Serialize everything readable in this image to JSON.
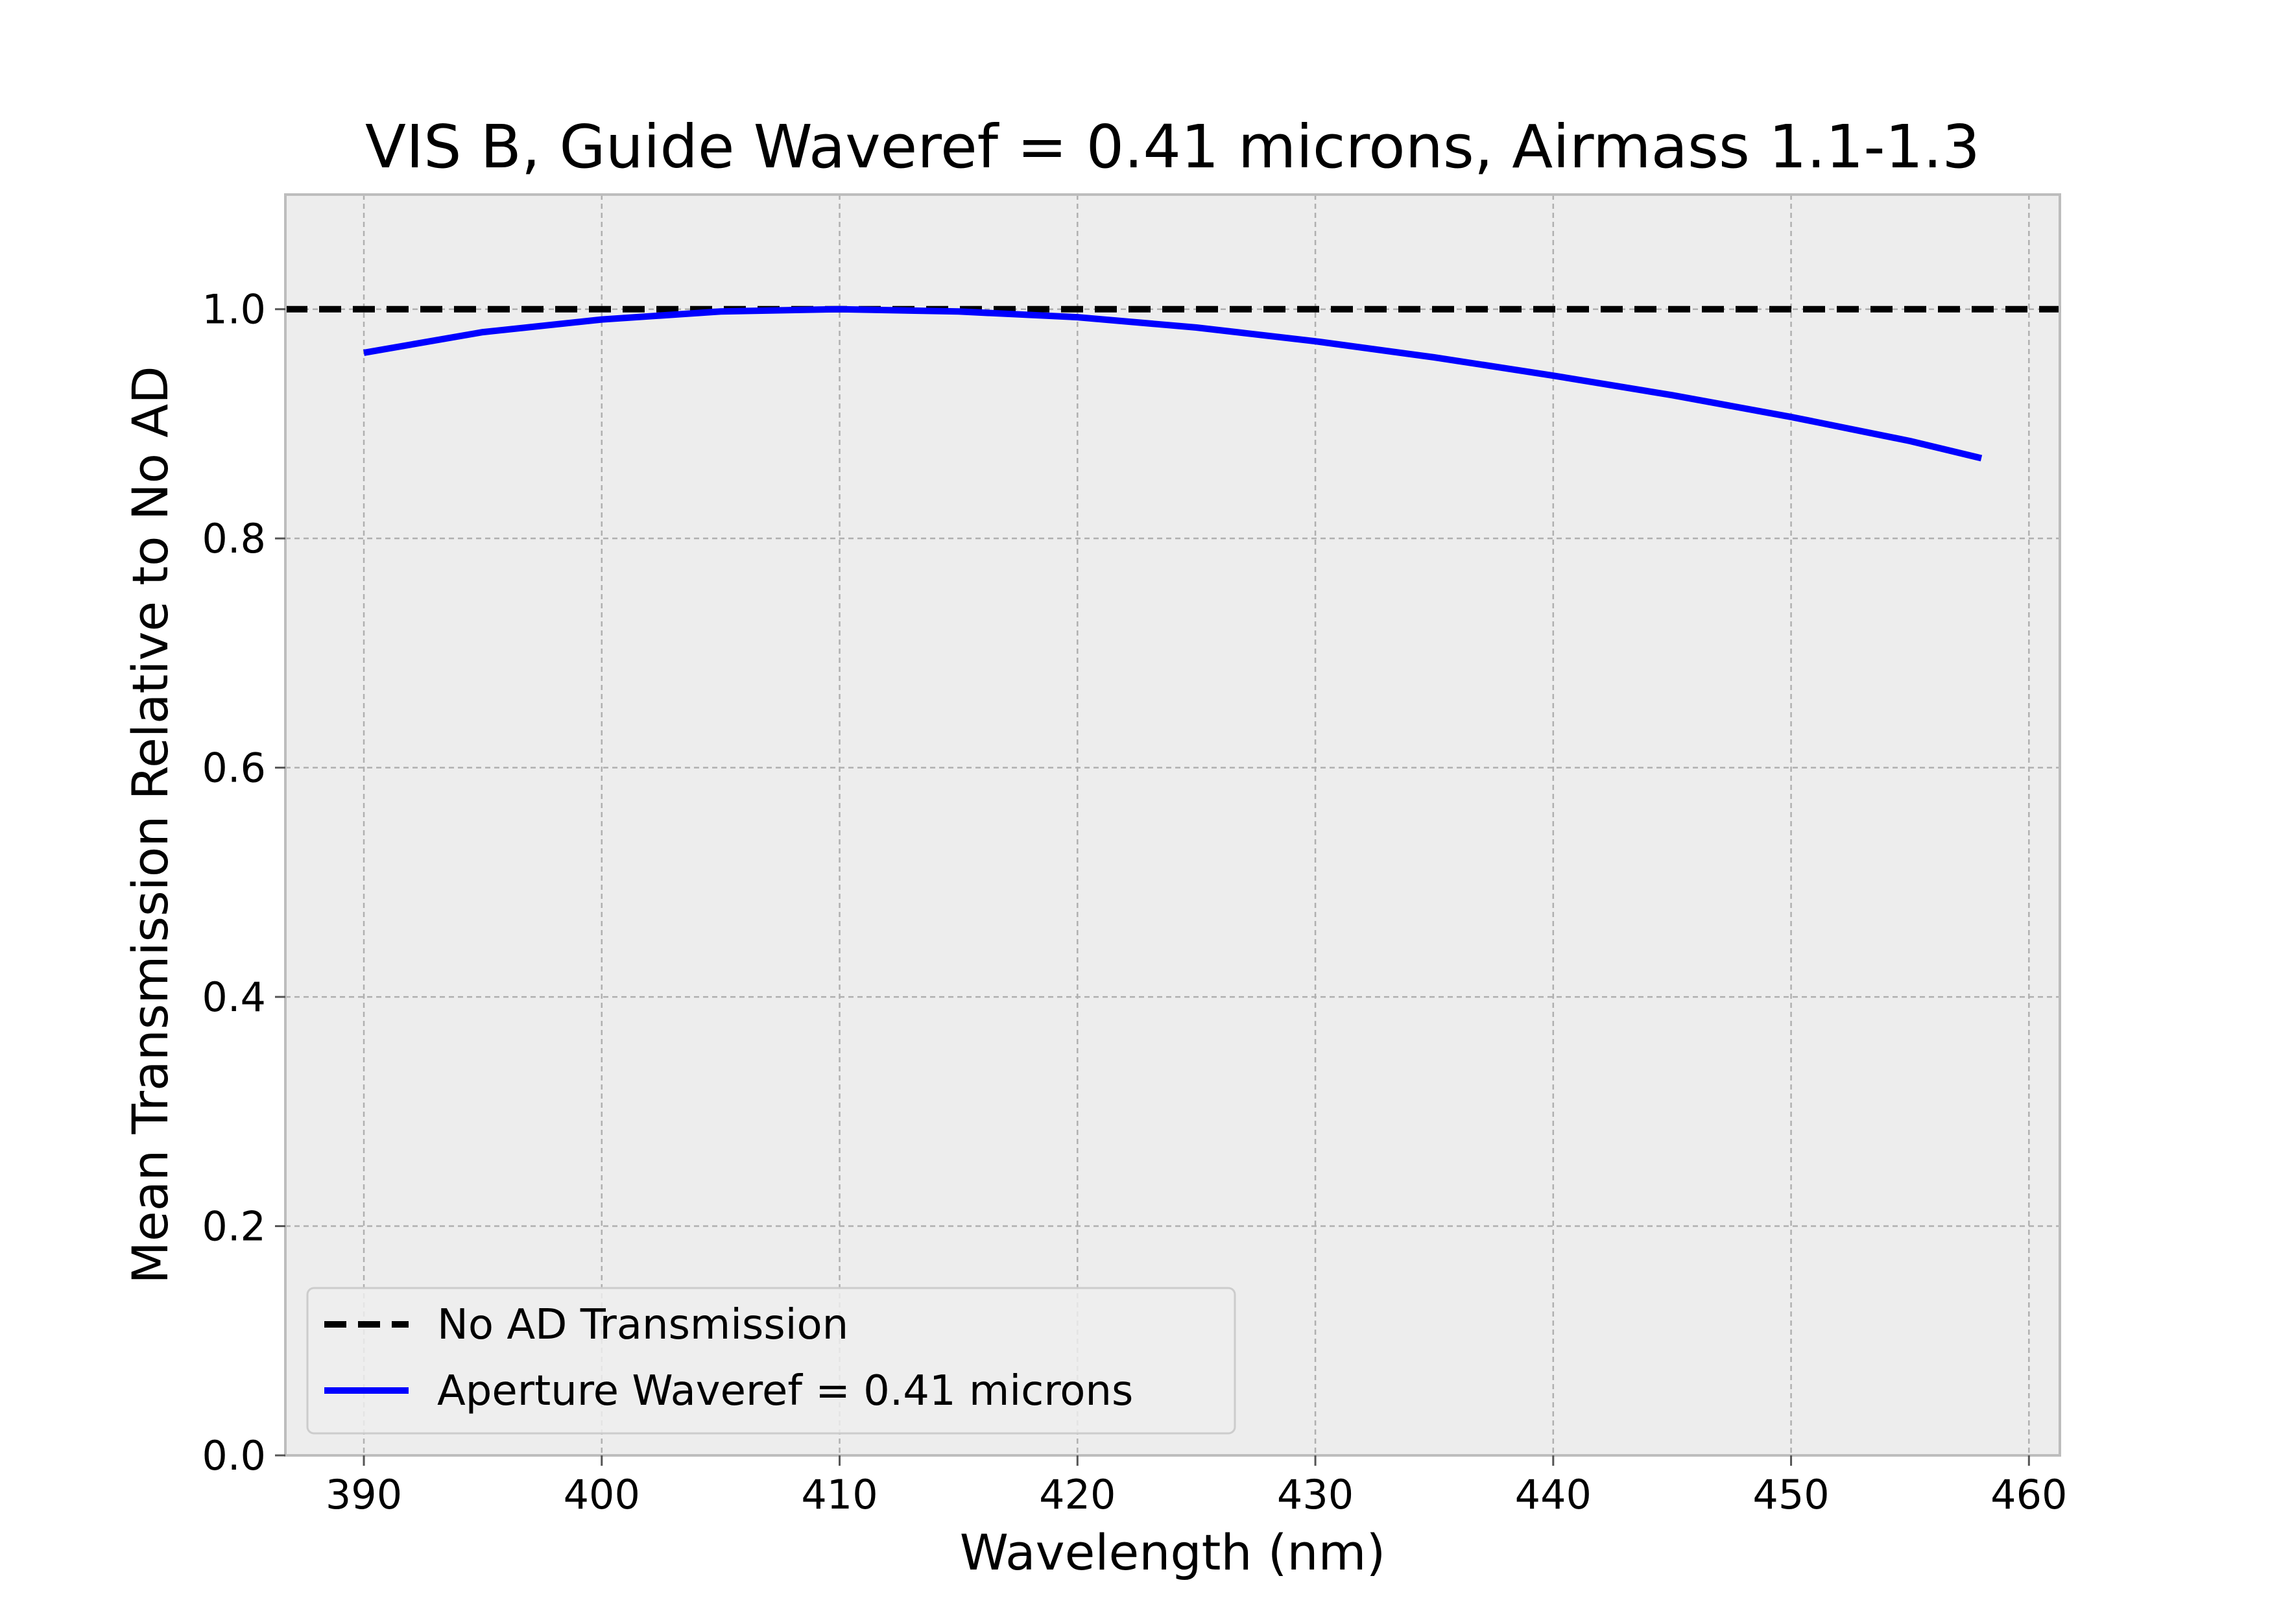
{
  "chart_data": {
    "type": "line",
    "title": "VIS B, Guide Waveref = 0.41 microns, Airmass 1.1-1.3",
    "xlabel": "Wavelength (nm)",
    "ylabel": "Mean Transmission Relative to No AD",
    "xlim": [
      386.7,
      461.3
    ],
    "ylim": [
      0.0,
      1.1
    ],
    "x_ticks": [
      390,
      400,
      410,
      420,
      430,
      440,
      450,
      460
    ],
    "x_tick_labels": [
      "390",
      "400",
      "410",
      "420",
      "430",
      "440",
      "450",
      "460"
    ],
    "y_ticks": [
      0.0,
      0.2,
      0.4,
      0.6,
      0.8,
      1.0
    ],
    "y_tick_labels": [
      "0.0",
      "0.2",
      "0.4",
      "0.6",
      "0.8",
      "1.0"
    ],
    "grid": true,
    "legend_position": "lower-left",
    "background_color": "#ededed",
    "series": [
      {
        "name": "No AD Transmission",
        "style": "dashed",
        "color": "#000000",
        "x": [
          386.7,
          461.3
        ],
        "y": [
          1.0,
          1.0
        ]
      },
      {
        "name": "Aperture Waveref = 0.41 microns",
        "style": "solid",
        "color": "#0000ff",
        "x": [
          390,
          395,
          400,
          405,
          410,
          415,
          420,
          425,
          430,
          435,
          440,
          445,
          450,
          455,
          458
        ],
        "y": [
          0.962,
          0.98,
          0.991,
          0.998,
          1.0,
          0.998,
          0.993,
          0.984,
          0.972,
          0.958,
          0.942,
          0.925,
          0.906,
          0.885,
          0.87
        ]
      }
    ]
  }
}
